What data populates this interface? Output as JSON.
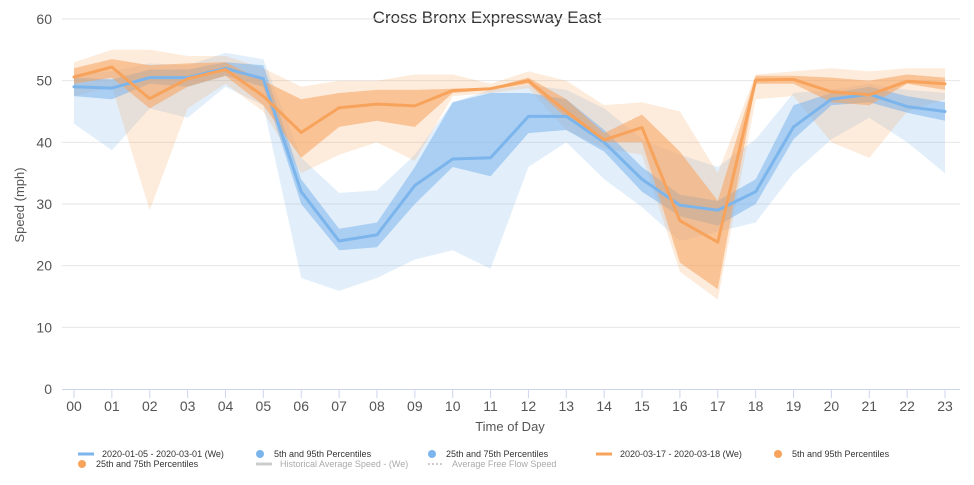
{
  "chart_data": {
    "type": "line",
    "title": "Cross Bronx Expressway East",
    "xlabel": "Time of Day",
    "ylabel": "Speed (mph)",
    "categories": [
      "00",
      "01",
      "02",
      "03",
      "04",
      "05",
      "06",
      "07",
      "08",
      "09",
      "10",
      "11",
      "12",
      "13",
      "14",
      "15",
      "16",
      "17",
      "18",
      "19",
      "20",
      "21",
      "22",
      "23"
    ],
    "yticks": [
      "0",
      "10",
      "20",
      "30",
      "40",
      "50",
      "60"
    ],
    "ylim": [
      0,
      60
    ],
    "grid": true,
    "legend_position": "bottom",
    "series": [
      {
        "name": "2020-01-05 - 2020-03-01 (We)",
        "color": "#7cb5ec",
        "values": [
          49,
          48.8,
          50.5,
          50.5,
          52,
          50.3,
          32,
          24,
          25,
          33,
          37.3,
          37.5,
          44.2,
          44.2,
          40,
          34,
          29.8,
          29,
          32,
          42.5,
          47,
          47.8,
          45.8,
          45
        ],
        "p25_75": [
          [
            47.5,
            50.5
          ],
          [
            47,
            50.2
          ],
          [
            49.5,
            51.8
          ],
          [
            49,
            51.8
          ],
          [
            50.8,
            53
          ],
          [
            49,
            52.5
          ],
          [
            30,
            34
          ],
          [
            22.5,
            26
          ],
          [
            23,
            27
          ],
          [
            30,
            36
          ],
          [
            36,
            46.5
          ],
          [
            34.5,
            48
          ],
          [
            41.5,
            48
          ],
          [
            42,
            47
          ],
          [
            38.5,
            42
          ],
          [
            32,
            36
          ],
          [
            28,
            31.5
          ],
          [
            26.5,
            30.5
          ],
          [
            30,
            34
          ],
          [
            40.5,
            46
          ],
          [
            46,
            48
          ],
          [
            46.5,
            49
          ],
          [
            44.8,
            47.5
          ],
          [
            43.5,
            46.5
          ]
        ],
        "p5_95": [
          [
            43,
            51
          ],
          [
            38.7,
            51.5
          ],
          [
            45.5,
            52.8
          ],
          [
            44,
            52.5
          ],
          [
            49,
            54.5
          ],
          [
            46,
            53.5
          ],
          [
            18,
            37.5
          ],
          [
            15.9,
            31.8
          ],
          [
            18,
            32.2
          ],
          [
            21,
            38
          ],
          [
            22.5,
            46.5
          ],
          [
            19.5,
            48.5
          ],
          [
            36,
            49.3
          ],
          [
            40,
            48.5
          ],
          [
            34,
            45.5
          ],
          [
            29.5,
            40.5
          ],
          [
            24,
            38
          ],
          [
            25.5,
            36
          ],
          [
            27,
            40.5
          ],
          [
            35,
            48
          ],
          [
            40.5,
            48.5
          ],
          [
            44,
            49.5
          ],
          [
            40,
            48.5
          ],
          [
            35,
            48
          ]
        ]
      },
      {
        "name": "2020-03-17 - 2020-03-18 (We)",
        "color": "#f7a35c",
        "values": [
          50.6,
          52.2,
          47.1,
          50.3,
          51.8,
          47.5,
          41.6,
          45.6,
          46.2,
          45.9,
          48.4,
          48.7,
          50.0,
          45,
          40.4,
          42.4,
          27.3,
          23.8,
          50.1,
          50.2,
          48.2,
          47.7,
          49.9,
          49.5
        ],
        "p25_75": [
          [
            49.5,
            52
          ],
          [
            50.5,
            53.5
          ],
          [
            45.5,
            52.5
          ],
          [
            49,
            52.8
          ],
          [
            50.8,
            53
          ],
          [
            46,
            50
          ],
          [
            37.5,
            47
          ],
          [
            42.5,
            48
          ],
          [
            43.5,
            48.5
          ],
          [
            42.5,
            48.5
          ],
          [
            48,
            48.7
          ],
          [
            48.5,
            48.8
          ],
          [
            49.5,
            50.5
          ],
          [
            44,
            47
          ],
          [
            40,
            41.5
          ],
          [
            40,
            44.5
          ],
          [
            20.5,
            38.5
          ],
          [
            16.2,
            30.5
          ],
          [
            49.5,
            50.8
          ],
          [
            49.5,
            50.8
          ],
          [
            46.5,
            50.5
          ],
          [
            46,
            50
          ],
          [
            49.5,
            51
          ],
          [
            48.5,
            50.5
          ]
        ],
        "p5_95": [
          [
            47.5,
            53
          ],
          [
            49,
            55
          ],
          [
            29,
            55
          ],
          [
            45.5,
            54
          ],
          [
            49.5,
            54
          ],
          [
            45,
            52
          ],
          [
            35,
            49
          ],
          [
            38,
            50
          ],
          [
            40,
            50
          ],
          [
            37,
            51
          ],
          [
            47.5,
            51
          ],
          [
            48,
            49.5
          ],
          [
            48.8,
            51.5
          ],
          [
            42,
            50
          ],
          [
            39,
            46
          ],
          [
            38,
            46.5
          ],
          [
            19,
            45
          ],
          [
            14.5,
            35
          ],
          [
            47,
            51
          ],
          [
            47.5,
            51.5
          ],
          [
            40,
            52
          ],
          [
            37.5,
            51.5
          ],
          [
            45,
            52
          ],
          [
            47,
            52
          ]
        ]
      }
    ],
    "legend": [
      {
        "label": "2020-01-05 - 2020-03-01 (We)",
        "symbol": "line",
        "color": "#7cb5ec"
      },
      {
        "label": "5th and 95th Percentiles",
        "symbol": "dot",
        "color": "#7cb5ec"
      },
      {
        "label": "25th and 75th Percentiles",
        "symbol": "dot",
        "color": "#7cb5ec"
      },
      {
        "label": "2020-03-17 - 2020-03-18 (We)",
        "symbol": "line",
        "color": "#f7a35c"
      },
      {
        "label": "5th and 95th Percentiles",
        "symbol": "dot",
        "color": "#f7a35c"
      },
      {
        "label": "25th and 75th Percentiles",
        "symbol": "dot",
        "color": "#f7a35c"
      },
      {
        "label": "Historical Average Speed - (We)",
        "symbol": "line-muted",
        "color": "#cccccc"
      },
      {
        "label": "Average Free Flow Speed",
        "symbol": "dotted-muted",
        "color": "#cccccc"
      }
    ]
  }
}
